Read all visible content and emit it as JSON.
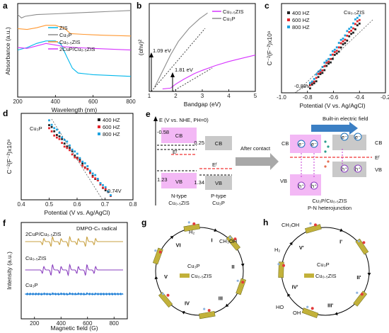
{
  "panel_labels": [
    "a",
    "b",
    "c",
    "d",
    "e",
    "f",
    "g",
    "h"
  ],
  "chart_data": [
    {
      "panel": "a",
      "type": "line",
      "xlabel": "Wavelength (nm)",
      "ylabel": "Absorbance (a.u.)",
      "xlim": [
        200,
        800
      ],
      "xticks": [
        "200",
        "400",
        "600",
        "800"
      ],
      "series": [
        {
          "name": "ZIS",
          "color": "#00b7eb",
          "points": [
            [
              200,
              0.52
            ],
            [
              250,
              0.55
            ],
            [
              300,
              0.6
            ],
            [
              350,
              0.63
            ],
            [
              400,
              0.63
            ],
            [
              430,
              0.59
            ],
            [
              460,
              0.44
            ],
            [
              490,
              0.3
            ],
            [
              520,
              0.24
            ],
            [
              600,
              0.22
            ],
            [
              700,
              0.21
            ],
            [
              800,
              0.2
            ]
          ]
        },
        {
          "name": "Cu₃P",
          "color": "#8c8c8c",
          "points": [
            [
              200,
              0.95
            ],
            [
              220,
              0.91
            ],
            [
              240,
              0.93
            ],
            [
              300,
              0.95
            ],
            [
              400,
              0.96
            ],
            [
              500,
              0.97
            ],
            [
              600,
              0.98
            ],
            [
              700,
              0.99
            ],
            [
              800,
              1.0
            ]
          ]
        },
        {
          "name": "Cu₀.₅ZIS",
          "color": "#ff9933",
          "points": [
            [
              200,
              0.78
            ],
            [
              250,
              0.77
            ],
            [
              300,
              0.79
            ],
            [
              350,
              0.82
            ],
            [
              400,
              0.82
            ],
            [
              450,
              0.78
            ],
            [
              480,
              0.72
            ],
            [
              550,
              0.71
            ],
            [
              650,
              0.7
            ],
            [
              800,
              0.69
            ]
          ]
        },
        {
          "name": "2CuP/Cu₀.₅ZIS",
          "color": "#d633ff",
          "points": [
            [
              200,
              0.55
            ],
            [
              250,
              0.54
            ],
            [
              300,
              0.57
            ],
            [
              350,
              0.6
            ],
            [
              400,
              0.58
            ],
            [
              450,
              0.56
            ],
            [
              500,
              0.55
            ],
            [
              600,
              0.54
            ],
            [
              700,
              0.53
            ],
            [
              800,
              0.52
            ]
          ]
        }
      ]
    },
    {
      "panel": "b",
      "type": "line",
      "xlabel": "Bandgap (eV)",
      "ylabel": "(αhν)²",
      "xlim": [
        1,
        5
      ],
      "xticks": [
        "1",
        "2",
        "3",
        "4",
        "5"
      ],
      "annotations": [
        "1.09 eV",
        "1.81 eV"
      ],
      "series": [
        {
          "name": "Cu₀.₅ZIS",
          "color": "#d633ff",
          "points": [
            [
              1.5,
              0.03
            ],
            [
              1.8,
              0.04
            ],
            [
              2.0,
              0.09
            ],
            [
              2.3,
              0.15
            ],
            [
              2.7,
              0.22
            ],
            [
              3.0,
              0.26
            ],
            [
              3.5,
              0.32
            ],
            [
              4.0,
              0.37
            ],
            [
              4.5,
              0.41
            ],
            [
              5.0,
              0.45
            ]
          ]
        },
        {
          "name": "Cu₃P",
          "color": "#8c8c8c",
          "points": [
            [
              1.2,
              0.05
            ],
            [
              1.5,
              0.25
            ],
            [
              1.8,
              0.45
            ],
            [
              2.1,
              0.62
            ],
            [
              2.5,
              0.78
            ],
            [
              2.9,
              0.9
            ],
            [
              3.2,
              0.97
            ]
          ]
        }
      ]
    },
    {
      "panel": "c",
      "type": "scatter",
      "title": "Cu₀.₅ZIS",
      "xlabel": "Potential (V vs. Ag/AgCl)",
      "ylabel": "C⁻²(F⁻²)x10⁹",
      "xlim": [
        -1.0,
        -0.2
      ],
      "xticks": [
        "-1.0",
        "-0.8",
        "-0.6",
        "-0.4",
        "-0.2"
      ],
      "annotations": [
        "-0.88V"
      ],
      "series": [
        {
          "name": "400 HZ",
          "color": "#222222",
          "from": [
            -0.78,
            0.02
          ],
          "to": [
            -0.4,
            0.31
          ]
        },
        {
          "name": "600 HZ",
          "color": "#e3242b",
          "from": [
            -0.78,
            0.03
          ],
          "to": [
            -0.4,
            0.33
          ]
        },
        {
          "name": "800 HZ",
          "color": "#1fa3e0",
          "from": [
            -0.78,
            0.04
          ],
          "to": [
            -0.4,
            0.35
          ]
        }
      ]
    },
    {
      "panel": "d",
      "type": "scatter",
      "title": "Cu₃P",
      "xlabel": "Potential (V vs. Ag/AgCl)",
      "ylabel": "C⁻²(F⁻²)x10⁹",
      "xlim": [
        0.4,
        0.8
      ],
      "xticks": [
        "0.4",
        "0.5",
        "0.6",
        "0.7",
        "0.8"
      ],
      "annotations": [
        "0.74V"
      ],
      "series": [
        {
          "name": "400 HZ",
          "color": "#222222",
          "from": [
            0.5,
            0.95
          ],
          "to": [
            0.72,
            0.05
          ]
        },
        {
          "name": "600 HZ",
          "color": "#e3242b",
          "from": [
            0.5,
            0.9
          ],
          "to": [
            0.72,
            0.06
          ]
        },
        {
          "name": "800 HZ",
          "color": "#1fa3e0",
          "from": [
            0.5,
            1.0
          ],
          "to": [
            0.72,
            0.07
          ]
        }
      ]
    },
    {
      "panel": "f",
      "type": "line",
      "title": "DMPO-Cₙ radical",
      "xlabel": "Magnetic field (G)",
      "ylabel": "Intensity (a.u.)",
      "xlim": [
        100,
        900
      ],
      "xticks": [
        "200",
        "400",
        "600",
        "800"
      ],
      "series": [
        {
          "name": "2CuP/Cu₀.₅ZIS",
          "color": "#c8a040",
          "amplitude": 0.9
        },
        {
          "name": "Cu₀.₅ZIS",
          "color": "#8a3fbf",
          "amplitude": 1.0
        },
        {
          "name": "Cu₃P",
          "color": "#1f7fd6",
          "amplitude": 0.08
        }
      ]
    }
  ],
  "panel_e": {
    "axis_title": "E (V vs. NHE, PH=0)",
    "cb_label": "CB",
    "vb_label": "VB",
    "ef_label": "Eᶠ",
    "left_cb": "-0.58",
    "left_vb": "1.23",
    "right_cb": "0.25",
    "right_vb": "1.34",
    "left_type": "N-type",
    "left_name": "Cu₀.₅ZIS",
    "right_type": "P-type",
    "right_name": "Cu₃P",
    "arrow_text": "After contact",
    "field_text": "Built-in electric field",
    "hj_name": "Cu₃P/Cu₀.₅ZIS",
    "hj_type": "P-N heterojunction",
    "electron": "e⁻",
    "hole": "h⁺"
  },
  "panel_g": {
    "steps": [
      "I",
      "II",
      "III",
      "IV",
      "V",
      "VI"
    ],
    "labels": [
      "CH₃OH",
      "Cu₃P",
      "Cu₀.₅ZIS",
      "H₂"
    ]
  },
  "panel_h": {
    "steps": [
      "I'",
      "II'",
      "III'",
      "IV'",
      "V'"
    ],
    "labels": [
      "CH₃OH",
      "Cu₃P",
      "Cu₀.₅ZIS",
      "H₂",
      "HO",
      "OH"
    ]
  }
}
